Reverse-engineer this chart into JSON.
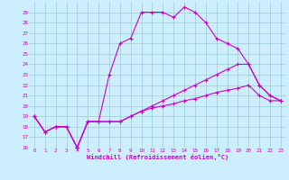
{
  "background_color": "#cceeff",
  "grid_color": "#99cccc",
  "line_color": "#cc00cc",
  "marker": "+",
  "xlim": [
    -0.5,
    23.5
  ],
  "ylim": [
    16,
    30
  ],
  "xtick_labels": [
    "0",
    "1",
    "2",
    "3",
    "4",
    "5",
    "6",
    "7",
    "8",
    "9",
    "10",
    "11",
    "12",
    "13",
    "14",
    "15",
    "16",
    "17",
    "18",
    "19",
    "20",
    "21",
    "22",
    "23"
  ],
  "ytick_labels": [
    "16",
    "17",
    "18",
    "19",
    "20",
    "21",
    "22",
    "23",
    "24",
    "25",
    "26",
    "27",
    "28",
    "29"
  ],
  "xlabel": "Windchill (Refroidissement éolien,°C)",
  "series": [
    [
      19,
      17.5,
      18,
      18,
      16,
      18.5,
      18.5,
      23,
      26,
      26.5,
      29,
      29,
      29,
      28.5,
      29.5,
      29,
      28,
      26.5,
      26,
      25.5,
      24,
      22,
      21,
      20.5
    ],
    [
      19,
      17.5,
      18,
      18,
      16,
      18.5,
      18.5,
      18.5,
      18.5,
      19,
      19.5,
      20,
      20.5,
      21,
      21.5,
      22,
      22.5,
      23,
      23.5,
      24,
      24,
      22,
      21,
      20.5
    ],
    [
      19,
      17.5,
      18,
      18,
      16,
      18.5,
      18.5,
      18.5,
      18.5,
      19,
      19.5,
      19.8,
      20,
      20.2,
      20.5,
      20.7,
      21,
      21.3,
      21.5,
      21.7,
      22,
      21,
      20.5,
      20.5
    ]
  ]
}
